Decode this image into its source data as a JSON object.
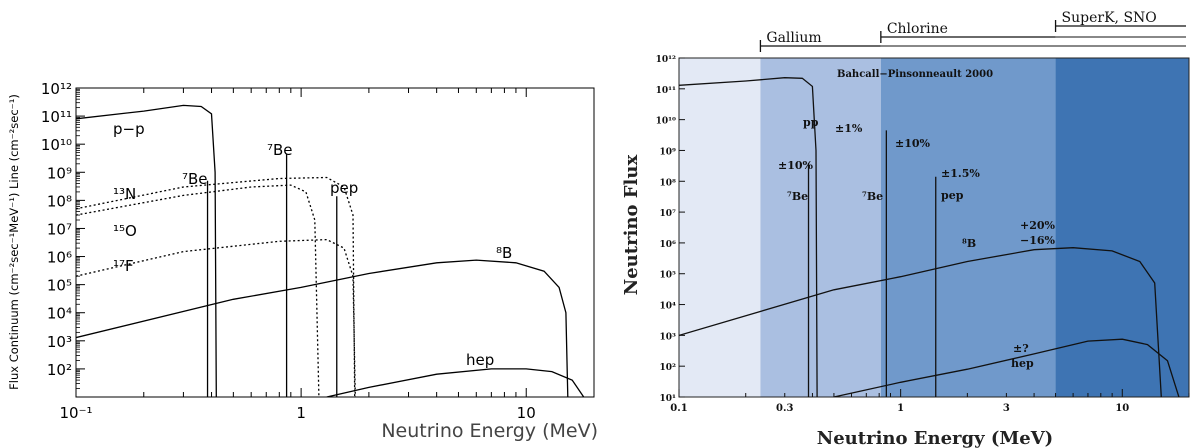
{
  "chart_data": [
    {
      "type": "line",
      "xlabel": "Neutrino Energy (MeV)",
      "ylabel": "Flux Continuum (cm⁻²sec⁻¹MeV⁻¹) Line (cm⁻²sec⁻¹)",
      "xscale": "log",
      "yscale": "log",
      "xlim": [
        0.1,
        20
      ],
      "ylim": [
        10,
        1000000000000.0
      ],
      "x_ticks": [
        {
          "value": 0.1,
          "label": "10⁻¹"
        },
        {
          "value": 1,
          "label": "1"
        },
        {
          "value": 10,
          "label": "10"
        }
      ],
      "y_ticks": [
        {
          "value": 100.0,
          "label": "10²"
        },
        {
          "value": 1000.0,
          "label": "10³"
        },
        {
          "value": 10000.0,
          "label": "10⁴"
        },
        {
          "value": 100000.0,
          "label": "10⁵"
        },
        {
          "value": 1000000.0,
          "label": "10⁶"
        },
        {
          "value": 10000000.0,
          "label": "10⁷"
        },
        {
          "value": 100000000.0,
          "label": "10⁸"
        },
        {
          "value": 1000000000.0,
          "label": "10⁹"
        },
        {
          "value": 10000000000.0,
          "label": "10¹⁰"
        },
        {
          "value": 100000000000.0,
          "label": "10¹¹"
        },
        {
          "value": 1000000000000.0,
          "label": "10¹²"
        }
      ],
      "series": [
        {
          "name": "p−p",
          "style": "solid",
          "points": [
            [
              0.1,
              80000000000.0
            ],
            [
              0.2,
              150000000000.0
            ],
            [
              0.3,
              240000000000.0
            ],
            [
              0.36,
              220000000000.0
            ],
            [
              0.4,
              120000000000.0
            ],
            [
              0.415,
              1000000000.0
            ],
            [
              0.42,
              10
            ]
          ]
        },
        {
          "name": "¹³N",
          "style": "dotted",
          "points": [
            [
              0.1,
              30000000.0
            ],
            [
              0.3,
              150000000.0
            ],
            [
              0.6,
              300000000.0
            ],
            [
              0.9,
              350000000.0
            ],
            [
              1.05,
              200000000.0
            ],
            [
              1.15,
              20000000.0
            ],
            [
              1.2,
              10
            ]
          ]
        },
        {
          "name": "¹⁵O",
          "style": "dotted",
          "points": [
            [
              0.1,
              50000000.0
            ],
            [
              0.3,
              300000000.0
            ],
            [
              0.8,
              600000000.0
            ],
            [
              1.3,
              650000000.0
            ],
            [
              1.55,
              300000000.0
            ],
            [
              1.7,
              30000000.0
            ],
            [
              1.73,
              10
            ]
          ]
        },
        {
          "name": "¹⁷F",
          "style": "dotted",
          "points": [
            [
              0.1,
              200000.0
            ],
            [
              0.3,
              1500000.0
            ],
            [
              0.8,
              3500000.0
            ],
            [
              1.3,
              4000000.0
            ],
            [
              1.55,
              2000000.0
            ],
            [
              1.7,
              200000.0
            ],
            [
              1.74,
              10
            ]
          ]
        },
        {
          "name": "⁸B",
          "style": "solid",
          "points": [
            [
              0.1,
              1300.0
            ],
            [
              0.5,
              30000.0
            ],
            [
              1,
              80000.0
            ],
            [
              2,
              250000.0
            ],
            [
              4,
              600000.0
            ],
            [
              6,
              750000.0
            ],
            [
              9,
              600000.0
            ],
            [
              12,
              300000.0
            ],
            [
              14,
              80000.0
            ],
            [
              15,
              10000.0
            ],
            [
              15.3,
              10
            ]
          ]
        },
        {
          "name": "hep",
          "style": "solid",
          "points": [
            [
              1.3,
              10
            ],
            [
              2,
              22
            ],
            [
              4,
              65
            ],
            [
              7,
              100
            ],
            [
              10,
              100
            ],
            [
              13,
              80
            ],
            [
              16,
              40
            ],
            [
              18,
              10
            ]
          ]
        }
      ],
      "lines": [
        {
          "name": "⁷Be",
          "x": 0.384,
          "value": 500000000.0
        },
        {
          "name": "⁷Be",
          "x": 0.862,
          "value": 4500000000.0
        },
        {
          "name": "pep",
          "x": 1.44,
          "value": 140000000.0
        }
      ],
      "labels": [
        {
          "text": "p−p"
        },
        {
          "text": "⁷Be"
        },
        {
          "text": "⁷Be"
        },
        {
          "text": "pep"
        },
        {
          "text": "¹³N"
        },
        {
          "text": "¹⁵O"
        },
        {
          "text": "¹⁷F"
        },
        {
          "text": "⁸B"
        },
        {
          "text": "hep"
        }
      ]
    },
    {
      "type": "line",
      "title": "Bahcall−Pinsonneault 2000",
      "xlabel": "Neutrino Energy (MeV)",
      "ylabel": "Neutrino Flux",
      "xscale": "log",
      "yscale": "log",
      "xlim": [
        0.1,
        20
      ],
      "ylim": [
        10,
        1000000000000.0
      ],
      "x_ticks": [
        {
          "value": 0.1,
          "label": "0.1"
        },
        {
          "value": 0.3,
          "label": "0.3"
        },
        {
          "value": 1,
          "label": "1"
        },
        {
          "value": 3,
          "label": "3"
        },
        {
          "value": 10,
          "label": "10"
        }
      ],
      "y_ticks": [
        {
          "value": 10.0,
          "label": "10¹"
        },
        {
          "value": 100.0,
          "label": "10²"
        },
        {
          "value": 1000.0,
          "label": "10³"
        },
        {
          "value": 10000.0,
          "label": "10⁴"
        },
        {
          "value": 100000.0,
          "label": "10⁵"
        },
        {
          "value": 1000000.0,
          "label": "10⁶"
        },
        {
          "value": 10000000.0,
          "label": "10⁷"
        },
        {
          "value": 100000000.0,
          "label": "10⁸"
        },
        {
          "value": 1000000000.0,
          "label": "10⁹"
        },
        {
          "value": 10000000000.0,
          "label": "10¹⁰"
        },
        {
          "value": 100000000000.0,
          "label": "10¹¹"
        },
        {
          "value": 1000000000000.0,
          "label": "10¹²"
        }
      ],
      "regions": [
        {
          "x0": 0.1,
          "x1": 0.233,
          "color": "#e3e9f5"
        },
        {
          "x0": 0.233,
          "x1": 0.814,
          "color": "#aabfe1"
        },
        {
          "x0": 0.814,
          "x1": 5,
          "color": "#7099cb"
        },
        {
          "x0": 5,
          "x1": 20,
          "color": "#3e74b3"
        }
      ],
      "detectors": [
        {
          "name": "Gallium",
          "x0": 0.233,
          "x1": 0.814
        },
        {
          "name": "Chlorine",
          "x0": 0.814,
          "x1": 5
        },
        {
          "name": "SuperK, SNO",
          "x0": 5,
          "x1": 20
        }
      ],
      "series": [
        {
          "name": "pp",
          "points": [
            [
              0.1,
              130000000000.0
            ],
            [
              0.2,
              180000000000.0
            ],
            [
              0.3,
              230000000000.0
            ],
            [
              0.36,
              220000000000.0
            ],
            [
              0.4,
              120000000000.0
            ],
            [
              0.415,
              1000000000.0
            ],
            [
              0.42,
              10
            ]
          ]
        },
        {
          "name": "⁸B",
          "points": [
            [
              0.1,
              1000.0
            ],
            [
              0.5,
              30000.0
            ],
            [
              1,
              80000.0
            ],
            [
              2,
              250000.0
            ],
            [
              4,
              600000.0
            ],
            [
              6,
              700000.0
            ],
            [
              9,
              550000.0
            ],
            [
              12,
              250000.0
            ],
            [
              14,
              50000.0
            ],
            [
              15,
              10
            ]
          ]
        },
        {
          "name": "hep",
          "points": [
            [
              0.5,
              10
            ],
            [
              1,
              30
            ],
            [
              2,
              80
            ],
            [
              4,
              250
            ],
            [
              7,
              650
            ],
            [
              10,
              750
            ],
            [
              13,
              500
            ],
            [
              16,
              150
            ],
            [
              18,
              10
            ]
          ]
        }
      ],
      "lines": [
        {
          "name": "⁷Be",
          "x": 0.384,
          "value": 400000000.0
        },
        {
          "name": "⁷Be",
          "x": 0.862,
          "value": 4500000000.0
        },
        {
          "name": "pep",
          "x": 1.44,
          "value": 140000000.0
        }
      ],
      "labels": [
        {
          "text": "pp"
        },
        {
          "text": "±1%"
        },
        {
          "text": "±10%"
        },
        {
          "text": "⁷Be"
        },
        {
          "text": "⁷Be"
        },
        {
          "text": "±10%"
        },
        {
          "text": "±1.5%"
        },
        {
          "text": "pep"
        },
        {
          "text": "+20%"
        },
        {
          "text": "−16%"
        },
        {
          "text": "⁸B"
        },
        {
          "text": "±?"
        },
        {
          "text": "hep"
        }
      ]
    }
  ]
}
